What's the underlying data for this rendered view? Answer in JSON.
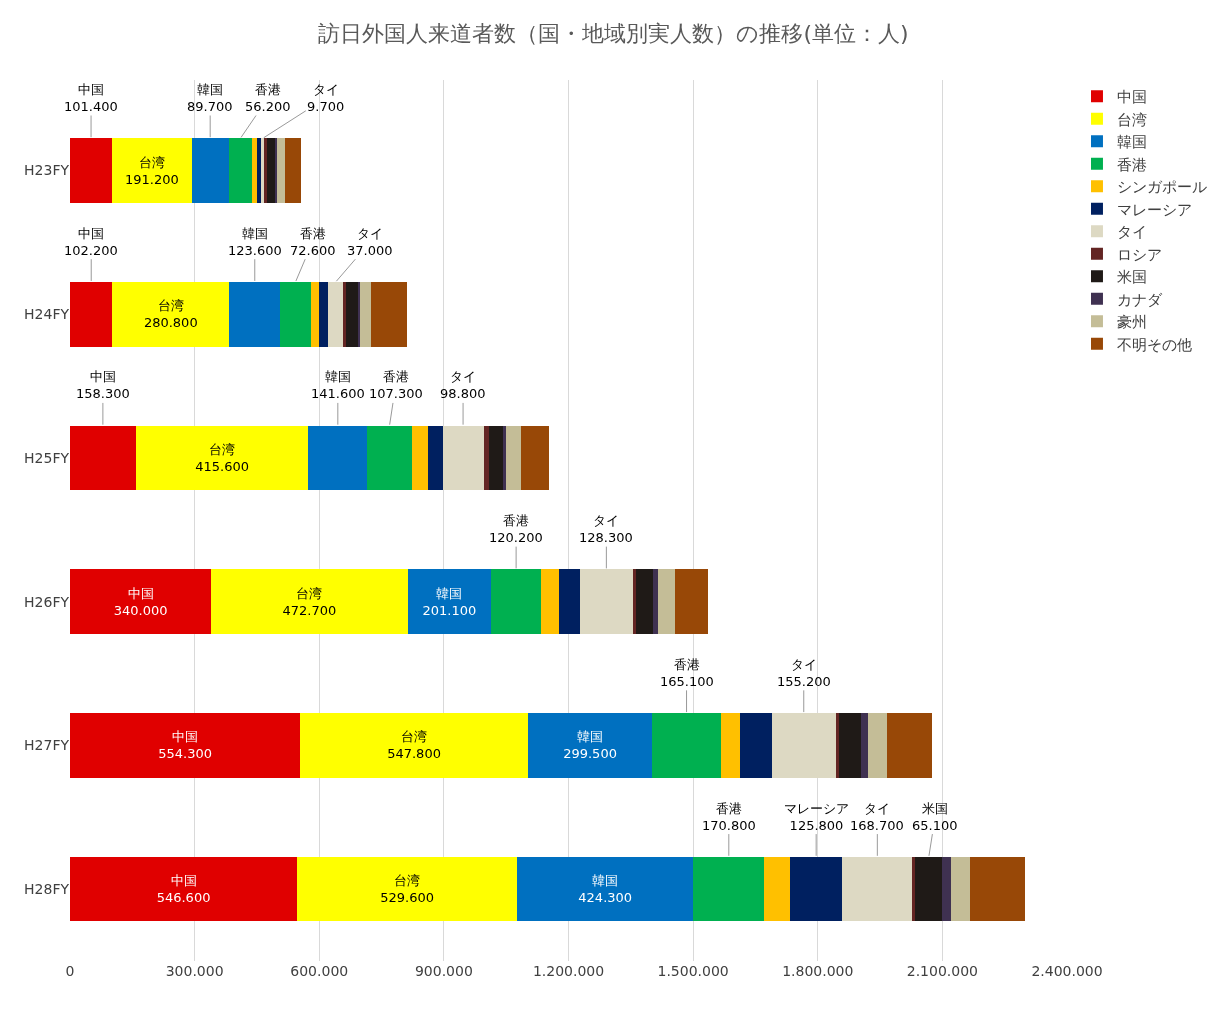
{
  "chart_data": {
    "type": "bar",
    "orientation": "horizontal",
    "stacked": true,
    "title": "訪日外国人来道者数（国・地域別実人数）の推移(単位：人)",
    "categories": [
      "H23FY",
      "H24FY",
      "H25FY",
      "H26FY",
      "H27FY",
      "H28FY"
    ],
    "series": [
      {
        "name": "中国",
        "color": "#e00000",
        "values": [
          101400,
          102200,
          158300,
          340000,
          554300,
          546600
        ],
        "value_labels": [
          "101.400",
          "102.200",
          "158.300",
          "340.000",
          "554.300",
          "546.600"
        ]
      },
      {
        "name": "台湾",
        "color": "#ffff00",
        "values": [
          191200,
          280800,
          415600,
          472700,
          547800,
          529600
        ],
        "value_labels": [
          "191.200",
          "280.800",
          "415.600",
          "472.700",
          "547.800",
          "529.600"
        ]
      },
      {
        "name": "韓国",
        "color": "#0070c0",
        "values": [
          89700,
          123600,
          141600,
          201100,
          299500,
          424300
        ],
        "value_labels": [
          "89.700",
          "123.600",
          "141.600",
          "201.100",
          "299.500",
          "424.300"
        ]
      },
      {
        "name": "香港",
        "color": "#00b050",
        "values": [
          56200,
          72600,
          107300,
          120200,
          165100,
          170800
        ],
        "value_labels": [
          "56.200",
          "72.600",
          "107.300",
          "120.200",
          "165.100",
          "170.800"
        ]
      },
      {
        "name": "シンガポール",
        "color": "#ffc000",
        "values": [
          12000,
          21000,
          39000,
          42000,
          46000,
          62000
        ]
      },
      {
        "name": "マレーシア",
        "color": "#002060",
        "values": [
          9000,
          21000,
          35000,
          51000,
          76000,
          125800
        ],
        "value_labels": [
          null,
          null,
          null,
          null,
          null,
          "125.800"
        ]
      },
      {
        "name": "タイ",
        "color": "#ddd9c3",
        "values": [
          9700,
          37000,
          98800,
          128300,
          155200,
          168700
        ],
        "value_labels": [
          "9.700",
          "37.000",
          "98.800",
          "128.300",
          "155.200",
          "168.700"
        ]
      },
      {
        "name": "ロシア",
        "color": "#632523",
        "values": [
          4000,
          5000,
          12000,
          8000,
          7000,
          7000
        ]
      },
      {
        "name": "米国",
        "color": "#1f1a17",
        "values": [
          22000,
          30000,
          35000,
          39000,
          53000,
          65100
        ],
        "value_labels": [
          null,
          null,
          null,
          null,
          null,
          "65.100"
        ]
      },
      {
        "name": "カナダ",
        "color": "#3f3151",
        "values": [
          4000,
          6000,
          7000,
          14000,
          16000,
          20000
        ]
      },
      {
        "name": "豪州",
        "color": "#c4bd97",
        "values": [
          18000,
          25000,
          37000,
          39000,
          46000,
          46000
        ]
      },
      {
        "name": "不明その他",
        "color": "#984807",
        "values": [
          40000,
          88000,
          67000,
          81000,
          108000,
          134000
        ]
      }
    ],
    "xlim": [
      0,
      2400000
    ],
    "xticks": [
      0,
      {
        "value": 300000,
        "label": "300.000"
      },
      {
        "value": 600000,
        "label": "600.000"
      },
      {
        "value": 900000,
        "label": "900.000"
      },
      {
        "value": 1200000,
        "label": "1.200.000"
      },
      {
        "value": 1500000,
        "label": "1.500.000"
      },
      {
        "value": 1800000,
        "label": "1.800.000"
      },
      {
        "value": 2100000,
        "label": "2.100.000"
      },
      {
        "value": 2400000,
        "label": "2.400.000"
      }
    ],
    "grid": "x",
    "legend": "top right"
  }
}
